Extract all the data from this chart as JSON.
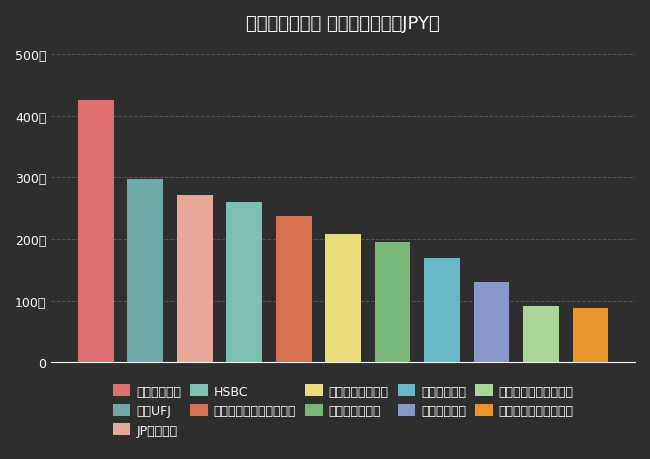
{
  "title": "グローバル銀行 総資産の比較（JPY）",
  "background_color": "#2e2e2e",
  "text_color": "#ffffff",
  "grid_color": "#555555",
  "bars": [
    {
      "label": "中国工商銀行",
      "value": 425,
      "color": "#e07070"
    },
    {
      "label": "三菱UFJ",
      "value": 298,
      "color": "#6fa8a8"
    },
    {
      "label": "JPモルガン",
      "value": 272,
      "color": "#e8a898"
    },
    {
      "label": "HSBC",
      "value": 260,
      "color": "#7dbfb0"
    },
    {
      "label": "バンク・オブ・アメリカ",
      "value": 237,
      "color": "#d97050"
    },
    {
      "label": "ウェルズファーゴ",
      "value": 208,
      "color": "#e8dd78"
    },
    {
      "label": "シティグループ",
      "value": 195,
      "color": "#7ab87a"
    },
    {
      "label": "ドイチェ銀行",
      "value": 170,
      "color": "#68b8c8"
    },
    {
      "label": "バークレイズ",
      "value": 130,
      "color": "#8898c8"
    },
    {
      "label": "ゴールドマンサックス",
      "value": 92,
      "color": "#a8d898"
    },
    {
      "label": "モルガン・スタンレー",
      "value": 88,
      "color": "#e8952a"
    }
  ],
  "legend_order": [
    "中国工商銀行",
    "三菱UFJ",
    "JPモルガン",
    "HSBC",
    "バンク・オブ・アメリカ",
    "ウェルズファーゴ",
    "シティグループ",
    "ドイチェ銀行",
    "バークレイズ",
    "ゴールドマンサックス",
    "モルガン・スタンレー"
  ],
  "yticks": [
    0,
    100,
    200,
    300,
    400,
    500
  ],
  "ytick_labels": [
    "0",
    "100兆",
    "200兆",
    "300兆",
    "400兆",
    "500兆"
  ],
  "ylim": [
    0,
    520
  ],
  "title_fontsize": 13,
  "tick_fontsize": 9,
  "legend_fontsize": 9
}
